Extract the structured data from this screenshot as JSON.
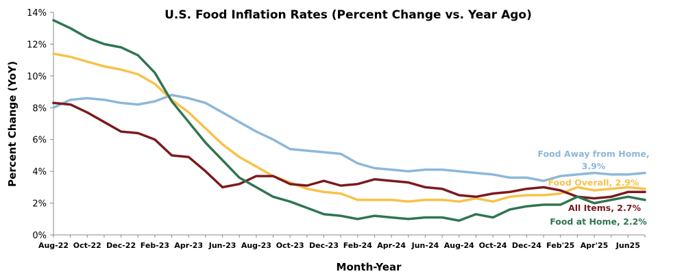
{
  "chart_data": {
    "type": "line",
    "title": "U.S. Food Inflation Rates (Percent Change vs. Year Ago)",
    "xlabel": "Month-Year",
    "ylabel": "Percent Change (YoY)",
    "ylim": [
      0,
      14
    ],
    "yticks": [
      "0%",
      "2%",
      "4%",
      "6%",
      "8%",
      "10%",
      "12%",
      "14%"
    ],
    "grid": false,
    "legend": "inline labels at right end of each series",
    "x": [
      "Aug-22",
      "Sep-22",
      "Oct-22",
      "Nov-22",
      "Dec-22",
      "Jan-23",
      "Feb-23",
      "Mar-23",
      "Apr-23",
      "May-23",
      "Jun-23",
      "Jul-23",
      "Aug-23",
      "Sep-23",
      "Oct-23",
      "Nov-23",
      "Dec-23",
      "Jan-24",
      "Feb-24",
      "Mar-24",
      "Apr-24",
      "May-24",
      "Jun-24",
      "Jul-24",
      "Aug-24",
      "Sep-24",
      "Oct-24",
      "Nov-24",
      "Dec-24",
      "Jan-25",
      "Feb'25",
      "Mar-25",
      "Apr'25",
      "May-25",
      "Jun25",
      "Jul-25"
    ],
    "xtick_labels": [
      "Aug-22",
      "Oct-22",
      "Dec-22",
      "Feb-23",
      "Apr-23",
      "Jun-23",
      "Aug-23",
      "Oct-23",
      "Dec-23",
      "Feb-24",
      "Apr-24",
      "Jun-24",
      "Aug-24",
      "Oct-24",
      "Dec-24",
      "Feb'25",
      "Apr'25",
      "Jun25"
    ],
    "series": [
      {
        "name": "Food Away from Home",
        "label_lines": [
          "Food Away from Home,",
          "3.9%"
        ],
        "color": "#8db7d9",
        "values": [
          8.0,
          8.5,
          8.6,
          8.5,
          8.3,
          8.2,
          8.4,
          8.8,
          8.6,
          8.3,
          7.7,
          7.1,
          6.5,
          6.0,
          5.4,
          5.3,
          5.2,
          5.1,
          4.5,
          4.2,
          4.1,
          4.0,
          4.1,
          4.1,
          4.0,
          3.9,
          3.8,
          3.6,
          3.6,
          3.4,
          3.7,
          3.8,
          3.9,
          3.8,
          3.8,
          3.9
        ]
      },
      {
        "name": "Food Overall",
        "label_lines": [
          "Food Overall, 2.9%"
        ],
        "color": "#f7c24a",
        "values": [
          11.4,
          11.2,
          10.9,
          10.6,
          10.4,
          10.1,
          9.5,
          8.5,
          7.7,
          6.7,
          5.7,
          4.9,
          4.3,
          3.7,
          3.3,
          2.9,
          2.7,
          2.6,
          2.2,
          2.2,
          2.2,
          2.1,
          2.2,
          2.2,
          2.1,
          2.3,
          2.1,
          2.4,
          2.5,
          2.5,
          2.6,
          3.0,
          2.8,
          2.9,
          3.0,
          2.9
        ]
      },
      {
        "name": "All Items",
        "label_lines": [
          "All Items, 2.7%"
        ],
        "color": "#7b1a1e",
        "values": [
          8.3,
          8.2,
          7.7,
          7.1,
          6.5,
          6.4,
          6.0,
          5.0,
          4.9,
          4.0,
          3.0,
          3.2,
          3.7,
          3.7,
          3.2,
          3.1,
          3.4,
          3.1,
          3.2,
          3.5,
          3.4,
          3.3,
          3.0,
          2.9,
          2.5,
          2.4,
          2.6,
          2.7,
          2.9,
          3.0,
          2.8,
          2.4,
          2.3,
          2.4,
          2.7,
          2.7
        ]
      },
      {
        "name": "Food at Home",
        "label_lines": [
          "Food at Home, 2.2%"
        ],
        "color": "#2f7550",
        "values": [
          13.5,
          13.0,
          12.4,
          12.0,
          11.8,
          11.3,
          10.2,
          8.4,
          7.1,
          5.8,
          4.7,
          3.6,
          3.0,
          2.4,
          2.1,
          1.7,
          1.3,
          1.2,
          1.0,
          1.2,
          1.1,
          1.0,
          1.1,
          1.1,
          0.9,
          1.3,
          1.1,
          1.6,
          1.8,
          1.9,
          1.9,
          2.4,
          2.0,
          2.2,
          2.4,
          2.2
        ]
      }
    ]
  }
}
